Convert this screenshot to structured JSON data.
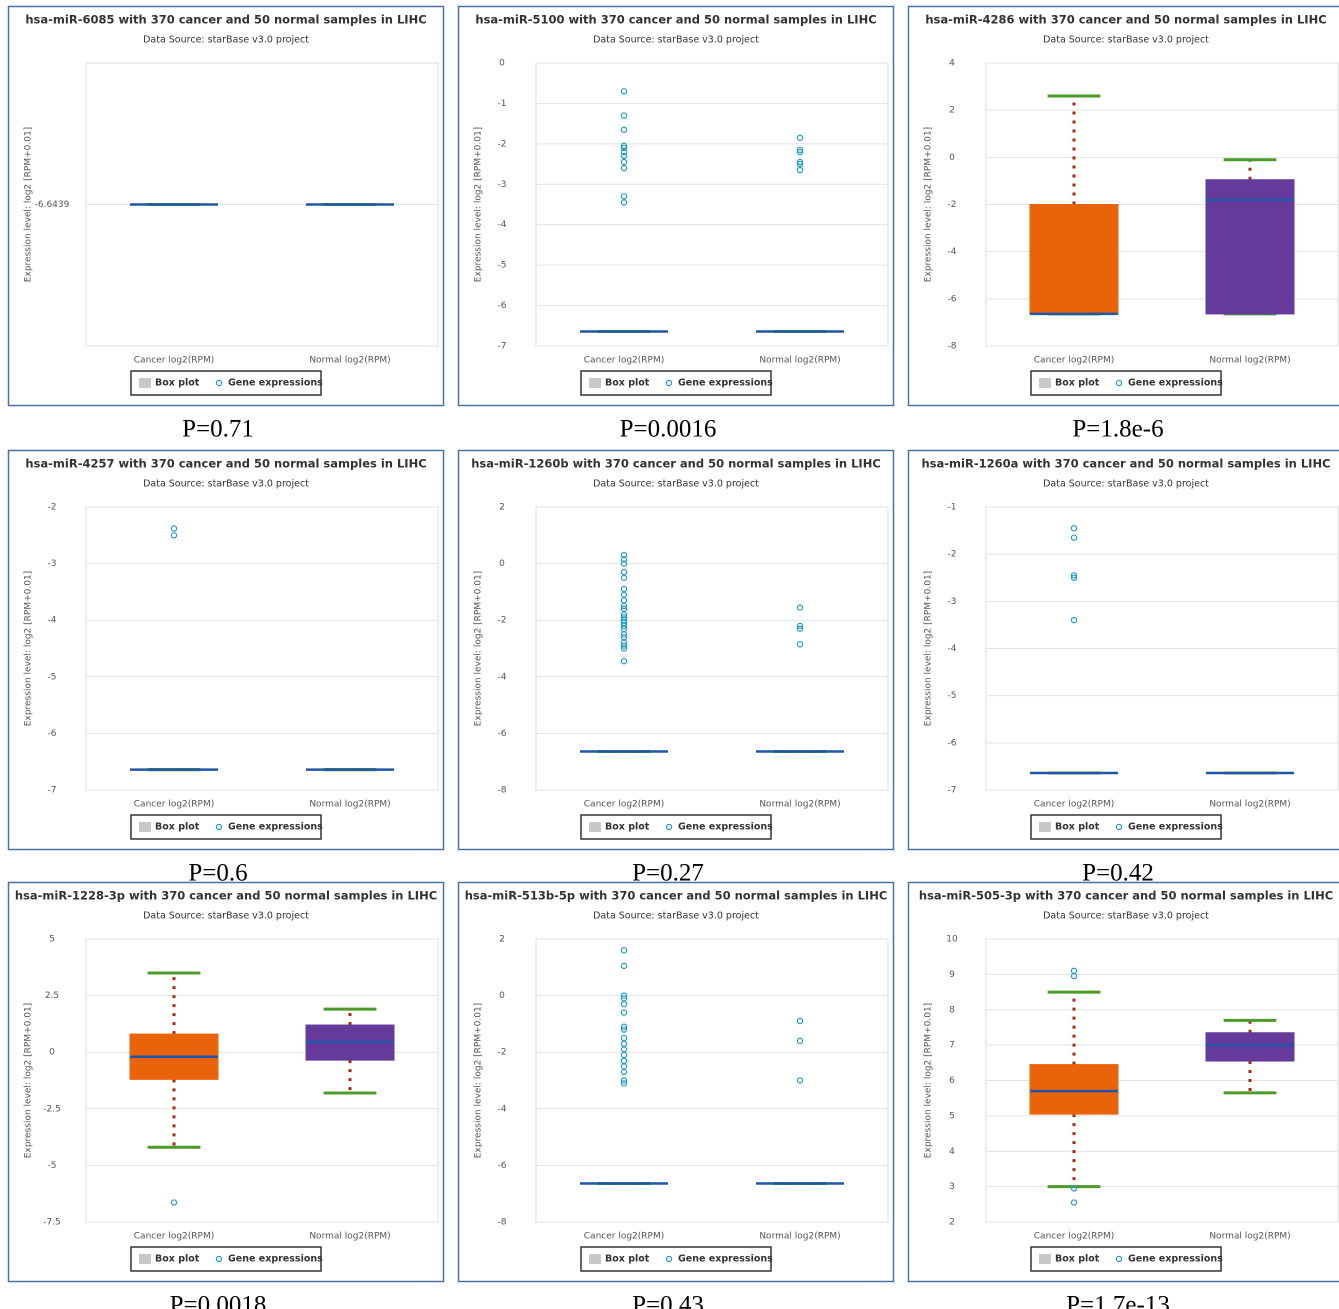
{
  "chart_data": [
    {
      "type": "box",
      "title": "hsa-miR-6085 with 370 cancer and 50 normal samples in LIHC",
      "subtitle": "Data Source: starBase v3.0 project",
      "ylabel": "Expression level: log2 [RPM+0.01]",
      "categories": [
        "Cancer log2(RPM)",
        "Normal log2(RPM)"
      ],
      "ylim": [
        -7.6439,
        -5.6439
      ],
      "yticks": [
        -6.6439
      ],
      "boxes": [
        {
          "min": -6.6439,
          "q1": -6.6439,
          "median": -6.6439,
          "q3": -6.6439,
          "max": -6.6439
        },
        {
          "min": -6.6439,
          "q1": -6.6439,
          "median": -6.6439,
          "q3": -6.6439,
          "max": -6.6439
        }
      ],
      "outliers": [
        [],
        []
      ],
      "colors": [
        "#e8630a",
        "#653a9a"
      ],
      "legend": [
        "Box plot",
        "Gene expressions"
      ],
      "annotation": "P=0.71"
    },
    {
      "type": "box",
      "title": "hsa-miR-5100 with 370 cancer and 50 normal samples in LIHC",
      "subtitle": "Data Source: starBase v3.0 project",
      "ylabel": "Expression level: log2 [RPM+0.01]",
      "categories": [
        "Cancer log2(RPM)",
        "Normal log2(RPM)"
      ],
      "ylim": [
        -7,
        0
      ],
      "yticks": [
        0,
        -1,
        -2,
        -3,
        -4,
        -5,
        -6,
        -7
      ],
      "boxes": [
        {
          "min": -6.64,
          "q1": -6.64,
          "median": -6.64,
          "q3": -6.64,
          "max": -6.64
        },
        {
          "min": -6.64,
          "q1": -6.64,
          "median": -6.64,
          "q3": -6.64,
          "max": -6.64
        }
      ],
      "outliers": [
        [
          -0.7,
          -1.3,
          -1.65,
          -2.05,
          -2.1,
          -2.2,
          -2.3,
          -2.45,
          -2.6,
          -3.3,
          -3.45
        ],
        [
          -1.85,
          -2.15,
          -2.2,
          -2.45,
          -2.5,
          -2.65
        ]
      ],
      "colors": [
        "#e8630a",
        "#653a9a"
      ],
      "legend": [
        "Box plot",
        "Gene expressions"
      ],
      "annotation": "P=0.0016"
    },
    {
      "type": "box",
      "title": "hsa-miR-4286 with 370 cancer and 50 normal samples in LIHC",
      "subtitle": "Data Source: starBase v3.0 project",
      "ylabel": "Expression level: log2 [RPM+0.01]",
      "categories": [
        "Cancer log2(RPM)",
        "Normal log2(RPM)"
      ],
      "ylim": [
        -8,
        4
      ],
      "yticks": [
        4,
        2,
        0,
        -2,
        -4,
        -6,
        -8
      ],
      "boxes": [
        {
          "min": -6.64,
          "q1": -6.64,
          "median": -6.64,
          "q3": -2.0,
          "max": 2.6
        },
        {
          "min": -6.64,
          "q1": -6.64,
          "median": -1.8,
          "q3": -0.95,
          "max": -0.1
        }
      ],
      "outliers": [
        [],
        []
      ],
      "colors": [
        "#e8630a",
        "#653a9a"
      ],
      "legend": [
        "Box plot",
        "Gene expressions"
      ],
      "annotation": "P=1.8e-6"
    },
    {
      "type": "box",
      "title": "hsa-miR-4257 with 370 cancer and 50 normal samples in LIHC",
      "subtitle": "Data Source: starBase v3.0 project",
      "ylabel": "Expression level: log2 [RPM+0.01]",
      "categories": [
        "Cancer log2(RPM)",
        "Normal log2(RPM)"
      ],
      "ylim": [
        -7,
        -2
      ],
      "yticks": [
        -2,
        -3,
        -4,
        -5,
        -6,
        -7
      ],
      "boxes": [
        {
          "min": -6.64,
          "q1": -6.64,
          "median": -6.64,
          "q3": -6.64,
          "max": -6.64
        },
        {
          "min": -6.64,
          "q1": -6.64,
          "median": -6.64,
          "q3": -6.64,
          "max": -6.64
        }
      ],
      "outliers": [
        [
          -2.38,
          -2.5
        ],
        []
      ],
      "colors": [
        "#e8630a",
        "#653a9a"
      ],
      "legend": [
        "Box plot",
        "Gene expressions"
      ],
      "annotation": "P=0.6"
    },
    {
      "type": "box",
      "title": "hsa-miR-1260b with 370 cancer and 50 normal samples in LIHC",
      "subtitle": "Data Source: starBase v3.0 project",
      "ylabel": "Expression level: log2 [RPM+0.01]",
      "categories": [
        "Cancer log2(RPM)",
        "Normal log2(RPM)"
      ],
      "ylim": [
        -8,
        2
      ],
      "yticks": [
        2,
        0,
        -2,
        -4,
        -6,
        -8
      ],
      "boxes": [
        {
          "min": -6.64,
          "q1": -6.64,
          "median": -6.64,
          "q3": -6.64,
          "max": -6.64
        },
        {
          "min": -6.64,
          "q1": -6.64,
          "median": -6.64,
          "q3": -6.64,
          "max": -6.64
        }
      ],
      "outliers": [
        [
          0.3,
          0.15,
          0,
          -0.3,
          -0.5,
          -0.9,
          -1.1,
          -1.3,
          -1.5,
          -1.6,
          -1.8,
          -1.9,
          -2.0,
          -2.1,
          -2.2,
          -2.3,
          -2.5,
          -2.6,
          -2.8,
          -2.9,
          -3.0,
          -3.45
        ],
        [
          -1.55,
          -2.2,
          -2.3,
          -2.85
        ]
      ],
      "colors": [
        "#e8630a",
        "#653a9a"
      ],
      "legend": [
        "Box plot",
        "Gene expressions"
      ],
      "annotation": "P=0.27"
    },
    {
      "type": "box",
      "title": "hsa-miR-1260a with 370 cancer and 50 normal samples in LIHC",
      "subtitle": "Data Source: starBase v3.0 project",
      "ylabel": "Expression level: log2 [RPM+0.01]",
      "categories": [
        "Cancer log2(RPM)",
        "Normal log2(RPM)"
      ],
      "ylim": [
        -7,
        -1
      ],
      "yticks": [
        -1,
        -2,
        -3,
        -4,
        -5,
        -6,
        -7
      ],
      "boxes": [
        {
          "min": -6.64,
          "q1": -6.64,
          "median": -6.64,
          "q3": -6.64,
          "max": -6.64
        },
        {
          "min": -6.64,
          "q1": -6.64,
          "median": -6.64,
          "q3": -6.64,
          "max": -6.64
        }
      ],
      "outliers": [
        [
          -1.45,
          -1.65,
          -2.45,
          -2.5,
          -3.4
        ],
        []
      ],
      "colors": [
        "#e8630a",
        "#653a9a"
      ],
      "legend": [
        "Box plot",
        "Gene expressions"
      ],
      "annotation": "P=0.42"
    },
    {
      "type": "box",
      "title": "hsa-miR-1228-3p with 370 cancer and 50 normal samples in LIHC",
      "subtitle": "Data Source: starBase v3.0 project",
      "ylabel": "Expression level: log2 [RPM+0.01]",
      "categories": [
        "Cancer log2(RPM)",
        "Normal log2(RPM)"
      ],
      "ylim": [
        -7.5,
        5
      ],
      "yticks": [
        5,
        2.5,
        0,
        -2.5,
        -5,
        -7.5
      ],
      "boxes": [
        {
          "min": -4.2,
          "q1": -1.2,
          "median": -0.2,
          "q3": 0.8,
          "max": 3.5
        },
        {
          "min": -1.8,
          "q1": -0.35,
          "median": 0.45,
          "q3": 1.2,
          "max": 1.9
        }
      ],
      "outliers": [
        [
          -6.64
        ],
        []
      ],
      "colors": [
        "#e8630a",
        "#653a9a"
      ],
      "legend": [
        "Box plot",
        "Gene expressions"
      ],
      "annotation": "P=0.0018"
    },
    {
      "type": "box",
      "title": "hsa-miR-513b-5p with 370 cancer and 50 normal samples in LIHC",
      "subtitle": "Data Source: starBase v3.0 project",
      "ylabel": "Expression level: log2 [RPM+0.01]",
      "categories": [
        "Cancer log2(RPM)",
        "Normal log2(RPM)"
      ],
      "ylim": [
        -8,
        2
      ],
      "yticks": [
        2,
        0,
        -2,
        -4,
        -6,
        -8
      ],
      "boxes": [
        {
          "min": -6.64,
          "q1": -6.64,
          "median": -6.64,
          "q3": -6.64,
          "max": -6.64
        },
        {
          "min": -6.64,
          "q1": -6.64,
          "median": -6.64,
          "q3": -6.64,
          "max": -6.64
        }
      ],
      "outliers": [
        [
          1.6,
          1.05,
          0,
          -0.1,
          -0.3,
          -0.6,
          -1.1,
          -1.2,
          -1.5,
          -1.7,
          -1.9,
          -2.1,
          -2.3,
          -2.5,
          -2.7,
          -3.0,
          -3.1
        ],
        [
          -0.9,
          -1.6,
          -3.0
        ]
      ],
      "colors": [
        "#e8630a",
        "#653a9a"
      ],
      "legend": [
        "Box plot",
        "Gene expressions"
      ],
      "annotation": "P=0.43"
    },
    {
      "type": "box",
      "title": "hsa-miR-505-3p with 370 cancer and 50 normal samples in LIHC",
      "subtitle": "Data Source: starBase v3.0 project",
      "ylabel": "Expression level: log2 [RPM+0.01]",
      "categories": [
        "Cancer log2(RPM)",
        "Normal log2(RPM)"
      ],
      "ylim": [
        2,
        10
      ],
      "yticks": [
        10,
        9,
        8,
        7,
        6,
        5,
        4,
        3,
        2
      ],
      "boxes": [
        {
          "min": 3.0,
          "q1": 5.05,
          "median": 5.7,
          "q3": 6.45,
          "max": 8.5
        },
        {
          "min": 5.65,
          "q1": 6.55,
          "median": 7.0,
          "q3": 7.35,
          "max": 7.7
        }
      ],
      "outliers": [
        [
          9.1,
          8.95,
          2.95,
          2.55
        ],
        []
      ],
      "colors": [
        "#e8630a",
        "#653a9a"
      ],
      "legend": [
        "Box plot",
        "Gene expressions"
      ],
      "annotation": "P=1.7e-13"
    }
  ]
}
